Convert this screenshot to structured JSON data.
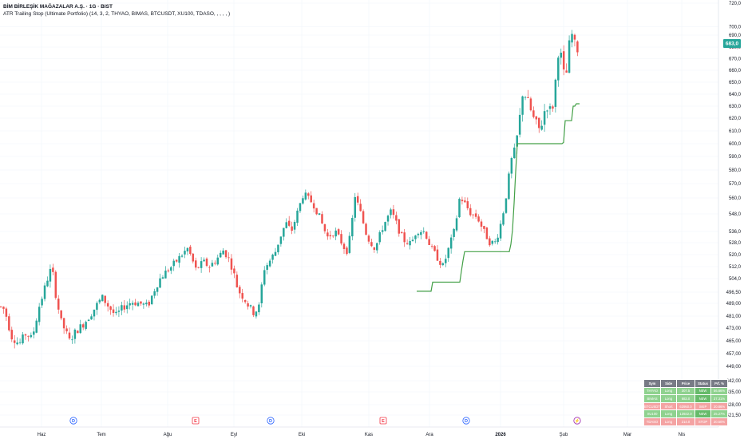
{
  "header": {
    "title": "BİM BİRLEŞİK MAĞAZALAR A.Ş. · 1G · BIST",
    "indicator": "ATR Trailing Stop (Ultimate Portfolio) (14, 3, 2, THYAO, BIMAS, BTCUSDT, XU100, TDASO, , , , , )"
  },
  "price_label": "683,0",
  "colors": {
    "up": "#26a69a",
    "down": "#ef5350",
    "stop": "#43a047",
    "last": "#26a69a",
    "table_long": "#8fd28f",
    "table_short": "#f4a3a3",
    "table_new": "#66bb6a",
    "table_header": "#787b86",
    "event_blue": "#2962ff",
    "event_red": "#f23645",
    "event_purple": "#9c27b0"
  },
  "table": {
    "headers": [
      "Sym",
      "Side",
      "Price",
      "Status",
      "Prf. %"
    ],
    "rows": [
      [
        "THYAO",
        "Long",
        "307.5",
        "NEW",
        "56.66%"
      ],
      [
        "BIMAS",
        "Long",
        "683.0",
        "NEW",
        "37.31%"
      ],
      [
        "BTCUSDT",
        "Short",
        "63950.0",
        "SKIP",
        "20.86%"
      ],
      [
        "XU100",
        "Long",
        "13922.0",
        "NEW",
        "25.27%"
      ],
      [
        "TDASO",
        "Long",
        "214.0",
        "STOP",
        "20.50%"
      ]
    ]
  },
  "events": [
    {
      "label": "D",
      "color": "blue"
    },
    {
      "label": "E",
      "color": "red"
    },
    {
      "label": "D",
      "color": "blue"
    },
    {
      "label": "E",
      "color": "red"
    },
    {
      "label": "D",
      "color": "blue"
    },
    {
      "label": "⚡",
      "color": "purple"
    }
  ],
  "chart_data": {
    "type": "candlestick",
    "title": "BİM BİRLEŞİK MAĞAZALAR A.Ş. · 1G · BIST",
    "y_ticks": [
      "720,0",
      "700,0",
      "690,0",
      "680,0",
      "670,0",
      "660,0",
      "650,0",
      "640,0",
      "630,0",
      "620,0",
      "610,0",
      "600,0",
      "590,0",
      "580,0",
      "570,0",
      "560,0",
      "548,0",
      "536,0",
      "528,0",
      "520,0",
      "512,0",
      "504,0",
      "496,50",
      "489,00",
      "481,00",
      "473,00",
      "465,00",
      "457,00",
      "449,00",
      "442,00",
      "435,00",
      "428,00",
      "421,50"
    ],
    "y_tick_values": [
      720,
      700,
      690,
      680,
      670,
      660,
      650,
      640,
      630,
      620,
      610,
      600,
      590,
      580,
      570,
      560,
      548,
      536,
      528,
      520,
      512,
      504,
      496.5,
      489,
      481,
      473,
      465,
      457,
      449,
      442,
      435,
      428,
      421.5
    ],
    "x_ticks": [
      "Haz",
      "Tem",
      "Ağu",
      "Eyl",
      "Eki",
      "Kas",
      "Ara",
      "2026",
      "Şub",
      "Mar",
      "Nis"
    ],
    "last_price": 683.0,
    "series": [
      {
        "name": "ATR Trailing Stop",
        "values": [
          497,
          497,
          497,
          497,
          497,
          497,
          497,
          497,
          497,
          497,
          502,
          502,
          502,
          502,
          502,
          502,
          502,
          502,
          502,
          502,
          502,
          502,
          502,
          502,
          502,
          502,
          502,
          502,
          509,
          516,
          522,
          522,
          522,
          522,
          522,
          522,
          522,
          522,
          522,
          522,
          522,
          522,
          522,
          522,
          522,
          522,
          522,
          522,
          522,
          522,
          522,
          522,
          522,
          522,
          522,
          522,
          522,
          522,
          522,
          527,
          537,
          556,
          579,
          600,
          600,
          600,
          600,
          600,
          600,
          600,
          600,
          600,
          600,
          600,
          600,
          600,
          600,
          600,
          600,
          600,
          600,
          600,
          600,
          600,
          600,
          600,
          600,
          600,
          600,
          600,
          600,
          600,
          601,
          618,
          618,
          618,
          618,
          618,
          630,
          630,
          632,
          632,
          632
        ]
      }
    ]
  }
}
